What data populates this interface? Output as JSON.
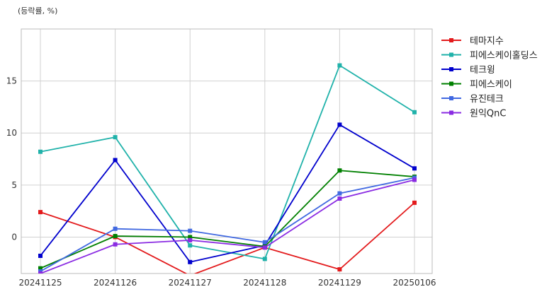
{
  "chart_data": {
    "type": "line",
    "unit_label": "(등락률, %)",
    "categories": [
      "20241125",
      "20241126",
      "20241127",
      "20241128",
      "20241129",
      "20250106"
    ],
    "ylim": [
      -3.5,
      20
    ],
    "yticks": [
      0,
      5,
      10,
      15
    ],
    "grid": true,
    "legend_position": "right",
    "series": [
      {
        "name": "테마지수",
        "color": "#e31a1c",
        "values": [
          2.4,
          0.0,
          -3.7,
          -1.0,
          -3.1,
          3.3
        ]
      },
      {
        "name": "피에스케이홀딩스",
        "color": "#20b2aa",
        "values": [
          8.2,
          9.6,
          -0.8,
          -2.1,
          16.5,
          12.0
        ]
      },
      {
        "name": "테크윙",
        "color": "#0000cd",
        "values": [
          -1.8,
          7.4,
          -2.4,
          -0.8,
          10.8,
          6.6
        ]
      },
      {
        "name": "피에스케이",
        "color": "#008000",
        "values": [
          -3.0,
          0.1,
          0.0,
          -0.9,
          6.4,
          5.8
        ]
      },
      {
        "name": "유진테크",
        "color": "#4169e1",
        "values": [
          -3.3,
          0.8,
          0.6,
          -0.5,
          4.2,
          5.7
        ]
      },
      {
        "name": "원익QnC",
        "color": "#8a2be2",
        "values": [
          -3.5,
          -0.7,
          -0.3,
          -1.0,
          3.7,
          5.5
        ]
      }
    ]
  }
}
